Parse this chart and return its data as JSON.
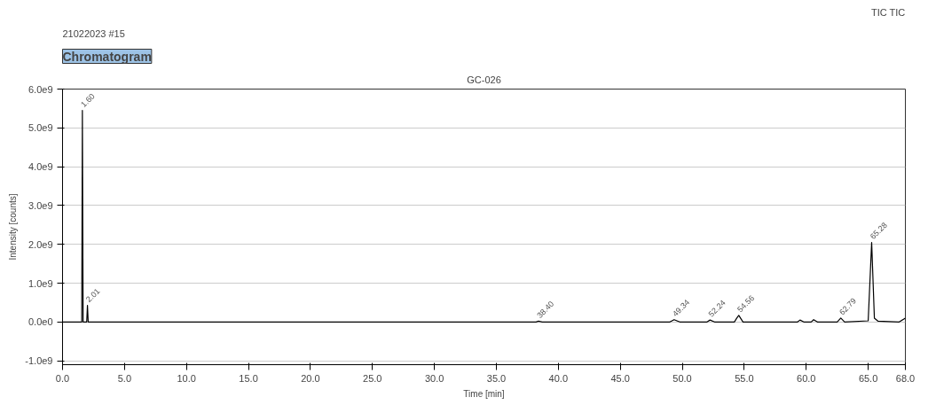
{
  "chart_data": {
    "type": "line",
    "title": "Chromatogram",
    "subtitle": "GC-026",
    "xlabel": "Time [min]",
    "ylabel": "Intensity [counts]",
    "x": [
      0,
      1.45,
      1.55,
      1.6,
      1.66,
      1.95,
      2.01,
      2.07,
      38.2,
      38.4,
      38.7,
      49.0,
      49.34,
      49.8,
      52.0,
      52.24,
      52.6,
      54.2,
      54.4,
      54.56,
      54.9,
      59.3,
      59.5,
      59.8,
      60.4,
      60.6,
      60.9,
      62.5,
      62.79,
      63.1,
      65.0,
      65.28,
      65.5,
      65.8,
      67.5,
      68.0
    ],
    "series": [
      {
        "color": "#000000",
        "values": [
          0,
          0,
          0,
          5450000000,
          0,
          0,
          430000000,
          0,
          0,
          20000000,
          0,
          0,
          60000000,
          0,
          0,
          50000000,
          0,
          0,
          100000000,
          170000000,
          0,
          0,
          50000000,
          0,
          0,
          60000000,
          0,
          0,
          100000000,
          0,
          30000000,
          2050000000,
          100000000,
          20000000,
          0,
          100000000
        ]
      }
    ],
    "xlim": [
      0,
      68.0
    ],
    "xticks": [
      {
        "value": 0,
        "label": "0.0"
      },
      {
        "value": 5,
        "label": "5.0"
      },
      {
        "value": 10,
        "label": "10.0"
      },
      {
        "value": 15,
        "label": "15.0"
      },
      {
        "value": 20,
        "label": "20.0"
      },
      {
        "value": 25,
        "label": "25.0"
      },
      {
        "value": 30,
        "label": "30.0"
      },
      {
        "value": 35,
        "label": "35.0"
      },
      {
        "value": 40,
        "label": "40.0"
      },
      {
        "value": 45,
        "label": "45.0"
      },
      {
        "value": 50,
        "label": "50.0"
      },
      {
        "value": 55,
        "label": "55.0"
      },
      {
        "value": 60,
        "label": "60.0"
      },
      {
        "value": 65,
        "label": "65.0"
      },
      {
        "value": 68,
        "label": "68.0"
      }
    ],
    "ylim": [
      -1100000000,
      6000000000
    ],
    "yticks": [
      {
        "value": -1000000000,
        "label": "-1.0e9"
      },
      {
        "value": 0,
        "label": "0.0e0"
      },
      {
        "value": 1000000000,
        "label": "1.0e9"
      },
      {
        "value": 2000000000,
        "label": "2.0e9"
      },
      {
        "value": 3000000000,
        "label": "3.0e9"
      },
      {
        "value": 4000000000,
        "label": "4.0e9"
      },
      {
        "value": 5000000000,
        "label": "5.0e9"
      },
      {
        "value": 6000000000,
        "label": "6.0e9"
      }
    ],
    "grid": "y",
    "marker": "none",
    "line_style": "solid",
    "annotations": [
      "21022023 #15",
      "TIC TIC",
      {
        "text": "1.60",
        "x": 1.6,
        "y": 5450000000
      },
      {
        "text": "2.01",
        "x": 2.01,
        "y": 430000000
      },
      {
        "text": "38.40",
        "x": 38.4,
        "y": 20000000
      },
      {
        "text": "49.34",
        "x": 49.34,
        "y": 60000000
      },
      {
        "text": "52.24",
        "x": 52.24,
        "y": 50000000
      },
      {
        "text": "54.56",
        "x": 54.56,
        "y": 170000000
      },
      {
        "text": "62.79",
        "x": 62.79,
        "y": 100000000
      },
      {
        "text": "65.28",
        "x": 65.28,
        "y": 2050000000
      }
    ]
  }
}
